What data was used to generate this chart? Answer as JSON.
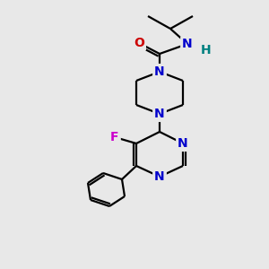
{
  "bg_color": "#e8e8e8",
  "atom_colors": {
    "C": "#000000",
    "N": "#0000cc",
    "O": "#cc0000",
    "F": "#cc00cc",
    "H": "#008080"
  },
  "bond_color": "#000000",
  "figsize": [
    3.0,
    3.0
  ],
  "dpi": 100
}
